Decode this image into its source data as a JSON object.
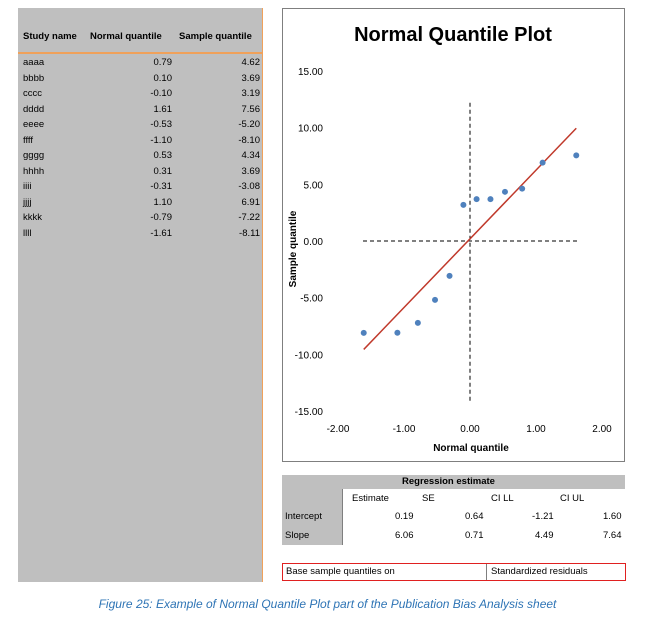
{
  "table": {
    "headers": [
      "Study name",
      "Normal quantile",
      "Sample quantile"
    ],
    "rows": [
      {
        "name": "aaaa",
        "nq": "0.79",
        "sq": "4.62"
      },
      {
        "name": "bbbb",
        "nq": "0.10",
        "sq": "3.69"
      },
      {
        "name": "cccc",
        "nq": "-0.10",
        "sq": "3.19"
      },
      {
        "name": "dddd",
        "nq": "1.61",
        "sq": "7.56"
      },
      {
        "name": "eeee",
        "nq": "-0.53",
        "sq": "-5.20"
      },
      {
        "name": "ffff",
        "nq": "-1.10",
        "sq": "-8.10"
      },
      {
        "name": "gggg",
        "nq": "0.53",
        "sq": "4.34"
      },
      {
        "name": "hhhh",
        "nq": "0.31",
        "sq": "3.69"
      },
      {
        "name": "iiii",
        "nq": "-0.31",
        "sq": "-3.08"
      },
      {
        "name": "jjjj",
        "nq": "1.10",
        "sq": "6.91"
      },
      {
        "name": "kkkk",
        "nq": "-0.79",
        "sq": "-7.22"
      },
      {
        "name": "llll",
        "nq": "-1.61",
        "sq": "-8.11"
      }
    ]
  },
  "chart_data": {
    "type": "scatter",
    "title": "Normal Quantile Plot",
    "xlabel": "Normal quantile",
    "ylabel": "Sample quantile",
    "xlim": [
      -2,
      2
    ],
    "ylim": [
      -15,
      15
    ],
    "xticks": [
      "-2.00",
      "-1.00",
      "0.00",
      "1.00",
      "2.00"
    ],
    "yticks": [
      "15.00",
      "10.00",
      "5.00",
      "0.00",
      "-5.00",
      "-10.00",
      "-15.00"
    ],
    "ytick_values": [
      15,
      10,
      5,
      0,
      -5,
      -10,
      -15
    ],
    "xtick_values": [
      -2,
      -1,
      0,
      1,
      2
    ],
    "points": {
      "x": [
        0.79,
        0.1,
        -0.1,
        1.61,
        -0.53,
        -1.1,
        0.53,
        0.31,
        -0.31,
        1.1,
        -0.79,
        -1.61
      ],
      "y": [
        4.62,
        3.69,
        3.19,
        7.56,
        -5.2,
        -8.1,
        4.34,
        3.69,
        -3.08,
        6.91,
        -7.22,
        -8.11
      ]
    },
    "regression_line": {
      "intercept": 0.19,
      "slope": 6.06,
      "x_range": [
        -1.61,
        1.61
      ]
    },
    "point_color": "#4f81bd",
    "line_color": "#c0392b",
    "grid": false
  },
  "regression": {
    "title": "Regression estimate",
    "columns": [
      "Estimate",
      "SE",
      "CI LL",
      "CI UL"
    ],
    "rows": [
      {
        "label": "Intercept",
        "estimate": "0.19",
        "se": "0.64",
        "ll": "-1.21",
        "ul": "1.60"
      },
      {
        "label": "Slope",
        "estimate": "6.06",
        "se": "0.71",
        "ll": "4.49",
        "ul": "7.64"
      }
    ]
  },
  "option": {
    "label": "Base sample quantiles on",
    "value": "Standardized residuals"
  },
  "caption": "Figure 25: Example of Normal Quantile Plot part of the Publication Bias Analysis sheet"
}
